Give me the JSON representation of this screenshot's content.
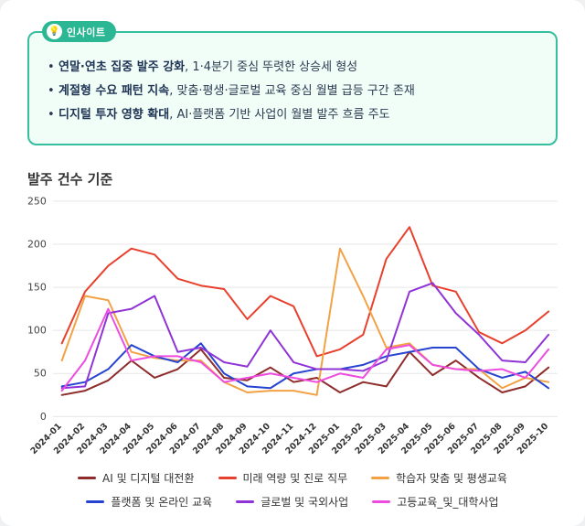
{
  "insight": {
    "badge_icon": "💡",
    "badge": "인사이트",
    "bullets": [
      {
        "bold": "연말·연초 집중 발주 강화",
        "rest": ", 1·4분기 중심 뚜렷한 상승세 형성"
      },
      {
        "bold": "계절형 수요 패턴 지속",
        "rest": ", 맞춤·평생·글로벌 교육 중심 월별 급등 구간 존재"
      },
      {
        "bold": "디지털 투자 영향 확대",
        "rest": ", AI·플랫폼 기반 사업이 월별 발주 흐름 주도"
      }
    ]
  },
  "chart_title": "발주 건수 기준",
  "chart_data": {
    "type": "line",
    "title": "발주 건수 기준",
    "xlabel": "",
    "ylabel": "",
    "ylim": [
      0,
      250
    ],
    "yticks": [
      0,
      50,
      100,
      150,
      200,
      250
    ],
    "grid": true,
    "legend_position": "bottom",
    "x": [
      "2024-01",
      "2024-02",
      "2024-03",
      "2024-04",
      "2024-05",
      "2024-06",
      "2024-07",
      "2024-08",
      "2024-09",
      "2024-10",
      "2024-11",
      "2024-12",
      "2025-01",
      "2025-02",
      "2025-03",
      "2025-04",
      "2025-05",
      "2025-06",
      "2025-07",
      "2025-08",
      "2025-09",
      "2025-10"
    ],
    "series": [
      {
        "name": "AI 및 디지털 대전환",
        "color": "#8e2c2c",
        "values": [
          25,
          30,
          42,
          65,
          45,
          55,
          78,
          45,
          42,
          57,
          40,
          45,
          28,
          40,
          35,
          75,
          48,
          65,
          45,
          28,
          35,
          57
        ]
      },
      {
        "name": "미래 역량 및 진로 직무",
        "color": "#e8402d",
        "values": [
          85,
          145,
          175,
          195,
          188,
          160,
          152,
          148,
          113,
          140,
          128,
          70,
          78,
          95,
          183,
          220,
          152,
          145,
          98,
          85,
          100,
          122
        ]
      },
      {
        "name": "학습자 맞춤 및 평생교육",
        "color": "#f2a144",
        "values": [
          65,
          140,
          135,
          75,
          68,
          65,
          65,
          40,
          28,
          30,
          30,
          25,
          195,
          140,
          80,
          85,
          60,
          55,
          55,
          33,
          45,
          40
        ]
      },
      {
        "name": "플랫폼 및 온라인 교육",
        "color": "#2644d0",
        "values": [
          35,
          40,
          55,
          83,
          70,
          63,
          85,
          50,
          35,
          33,
          50,
          55,
          55,
          60,
          70,
          75,
          80,
          80,
          55,
          45,
          52,
          33
        ]
      },
      {
        "name": "글로벌 및 국외사업",
        "color": "#8f33d6",
        "values": [
          33,
          35,
          120,
          125,
          140,
          75,
          80,
          63,
          58,
          100,
          63,
          55,
          55,
          53,
          65,
          145,
          155,
          120,
          95,
          65,
          63,
          95
        ]
      },
      {
        "name": "고등교육_및_대학사업",
        "color": "#ee4bdf",
        "values": [
          30,
          65,
          125,
          65,
          70,
          70,
          63,
          40,
          45,
          50,
          45,
          40,
          50,
          45,
          78,
          83,
          60,
          55,
          53,
          55,
          45,
          78
        ]
      }
    ]
  }
}
